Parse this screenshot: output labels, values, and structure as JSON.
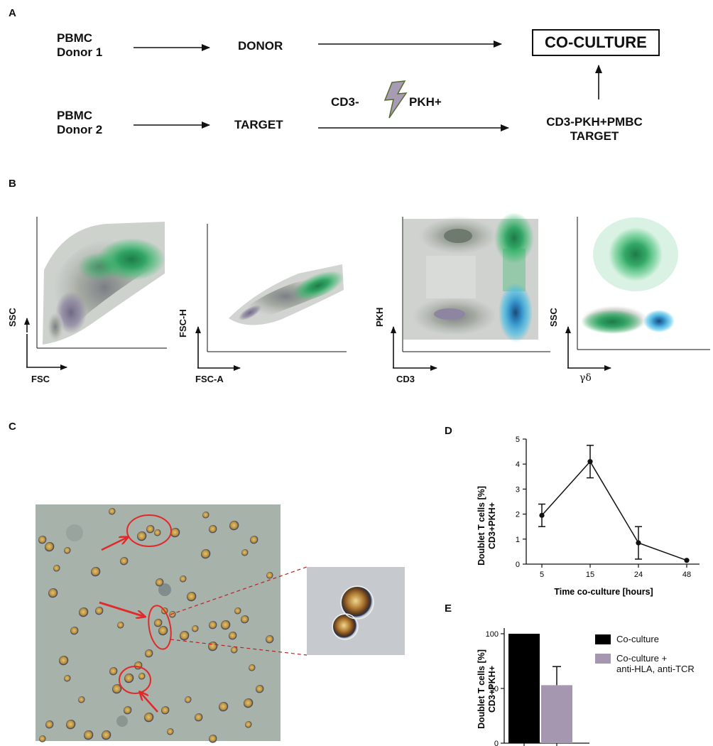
{
  "panel_a": {
    "letter": "A",
    "donor1": [
      "PBMC",
      "Donor 1"
    ],
    "donor2": [
      "PBMC",
      "Donor 2"
    ],
    "donor_label": "DONOR",
    "target_label": "TARGET",
    "cd3_label": "CD3-",
    "pkh_label": "PKH+",
    "coculture_label": "CO-CULTURE",
    "target_pbmc": [
      "CD3-PKH+PMBC",
      "TARGET"
    ],
    "colors": {
      "bolt_fill": "#a89cb5",
      "bolt_stroke": "#556b2f"
    }
  },
  "panel_b": {
    "letter": "B",
    "plots": [
      {
        "y": "SSC",
        "x": "FSC"
      },
      {
        "y": "FSC-H",
        "x": "FSC-A"
      },
      {
        "y": "PKH",
        "x": "CD3"
      },
      {
        "y": "SSC",
        "x": "γδ"
      }
    ],
    "colors": {
      "green": "#1a9a4a",
      "dark_green": "#2d6e45",
      "gray": "#9aa39a",
      "purple": "#8e86a0",
      "cyan": "#36b4e0"
    }
  },
  "panel_c": {
    "letter": "C",
    "colors": {
      "bg": "#a9b8a6",
      "cell": "#c8a75a",
      "arrow": "#e02a2a"
    }
  },
  "panel_d": {
    "letter": "D",
    "chart_data": {
      "type": "line",
      "x": [
        "5",
        "15",
        "24",
        "48"
      ],
      "values": [
        1.95,
        4.1,
        0.85,
        0.15
      ],
      "errors": [
        0.45,
        0.65,
        0.65,
        0
      ],
      "ylim": [
        0,
        5
      ],
      "yticks": [
        "0",
        "1",
        "2",
        "3",
        "4",
        "5"
      ],
      "ylabel": [
        "Doublet T cells [%]",
        "CD3+PKH+"
      ],
      "xlabel": "Time co-culture [hours]"
    }
  },
  "panel_e": {
    "letter": "E",
    "chart_data": {
      "type": "bar",
      "categories": [
        "Co-culture",
        "Co-culture + anti-HLA, anti-TCR"
      ],
      "values": [
        100,
        53
      ],
      "errors": [
        0,
        17
      ],
      "ylim": [
        0,
        100
      ],
      "yticks": [
        "0",
        "50",
        "100"
      ],
      "ylabel": [
        "Doublet T cells [%]",
        "CD3+PKH+"
      ],
      "colors": [
        "#000000",
        "#a597b0"
      ]
    },
    "legend": [
      {
        "label_lines": [
          "Co-culture"
        ],
        "color": "#000000"
      },
      {
        "label_lines": [
          "Co-culture +",
          "anti-HLA, anti-TCR"
        ],
        "color": "#a597b0"
      }
    ]
  }
}
